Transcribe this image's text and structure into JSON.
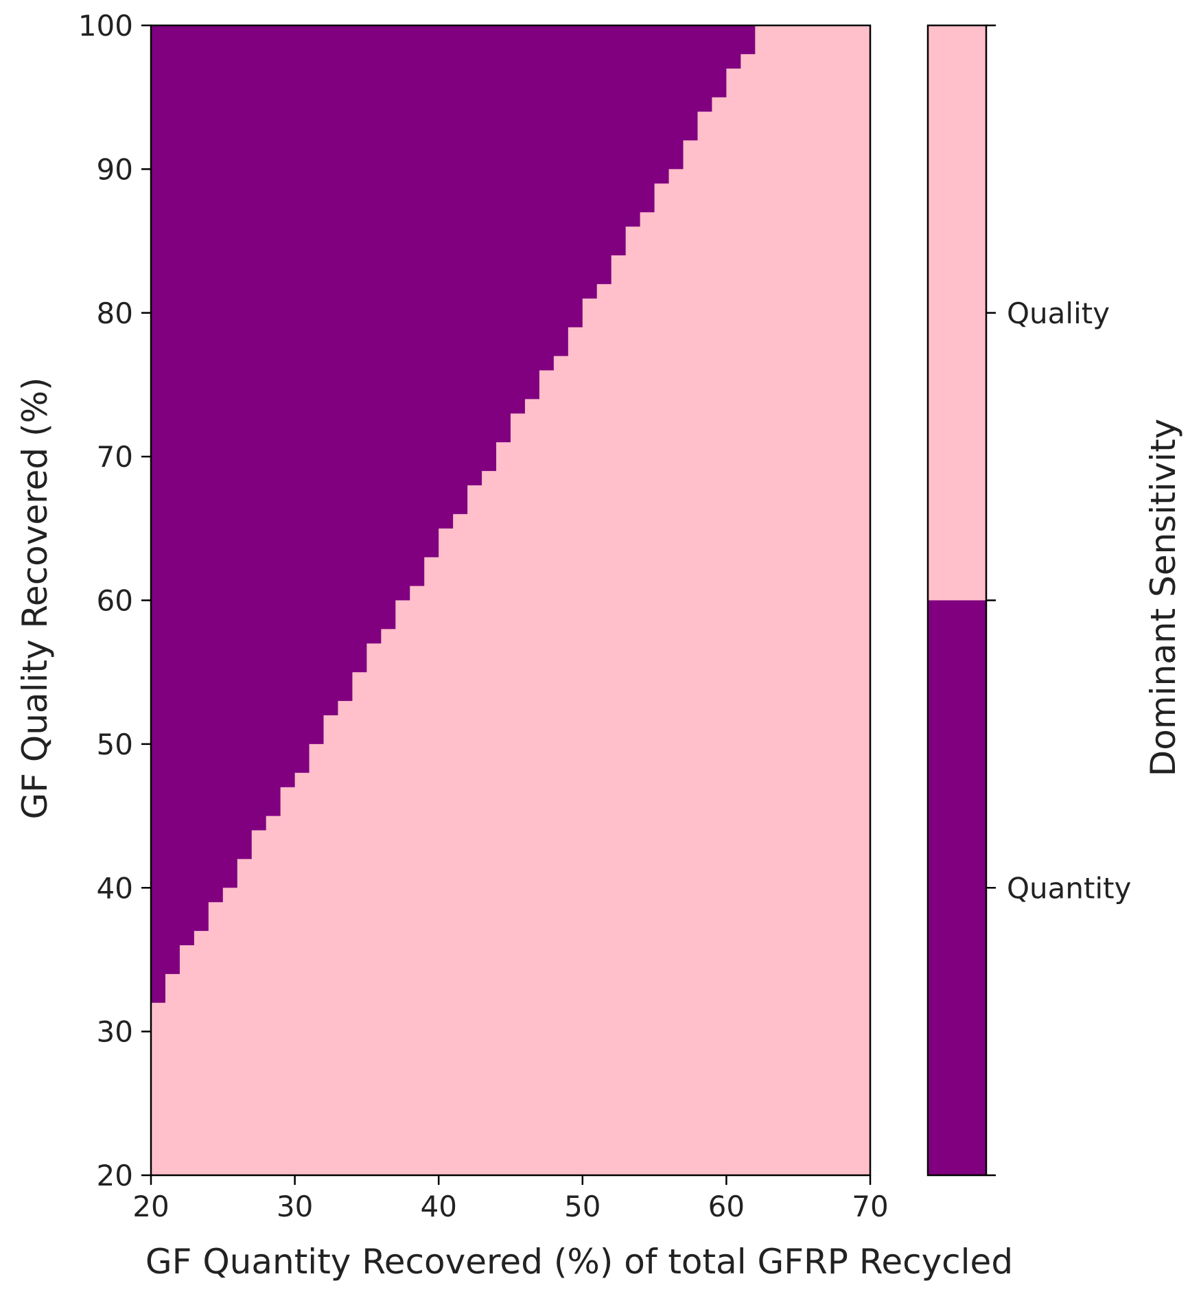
{
  "chart_data": {
    "type": "heatmap",
    "xlabel": "GF Quantity Recovered (%) of total GFRP Recycled",
    "ylabel": "GF Quality Recovered (%)",
    "xlim": [
      20,
      70
    ],
    "ylim": [
      20,
      100
    ],
    "xticks": [
      20,
      30,
      40,
      50,
      60,
      70
    ],
    "yticks": [
      20,
      30,
      40,
      50,
      60,
      70,
      80,
      90,
      100
    ],
    "x_tick_labels": [
      "20",
      "30",
      "40",
      "50",
      "60",
      "70"
    ],
    "y_tick_labels": [
      "20",
      "30",
      "40",
      "50",
      "60",
      "70",
      "80",
      "90",
      "100"
    ],
    "categories": [
      "Quantity",
      "Quality"
    ],
    "colors": {
      "Quantity": "#800080",
      "Quality": "#ffc0cb"
    },
    "grid": false,
    "regions_note_x": [
      20,
      21,
      22,
      23,
      24,
      25,
      26,
      27,
      28,
      29,
      30,
      31,
      32,
      33,
      34,
      35,
      36,
      37,
      38,
      39,
      40,
      41,
      42,
      43,
      44,
      45,
      46,
      47,
      48,
      49,
      50,
      51,
      52,
      53,
      54,
      55,
      56,
      57,
      58,
      59,
      60,
      61,
      62
    ],
    "boundary_y": [
      32,
      34,
      36,
      37,
      39,
      40,
      42,
      44,
      45,
      47,
      48,
      50,
      52,
      53,
      55,
      57,
      58,
      60,
      61,
      63,
      65,
      66,
      68,
      69,
      71,
      73,
      74,
      76,
      77,
      79,
      81,
      82,
      84,
      86,
      87,
      89,
      90,
      92,
      94,
      95,
      97,
      98,
      100
    ],
    "colorbar": {
      "label": "Dominant Sensitivity",
      "ticks": [
        {
          "label": "Quantity",
          "value": 0
        },
        {
          "label": "Quality",
          "value": 1
        }
      ]
    }
  }
}
